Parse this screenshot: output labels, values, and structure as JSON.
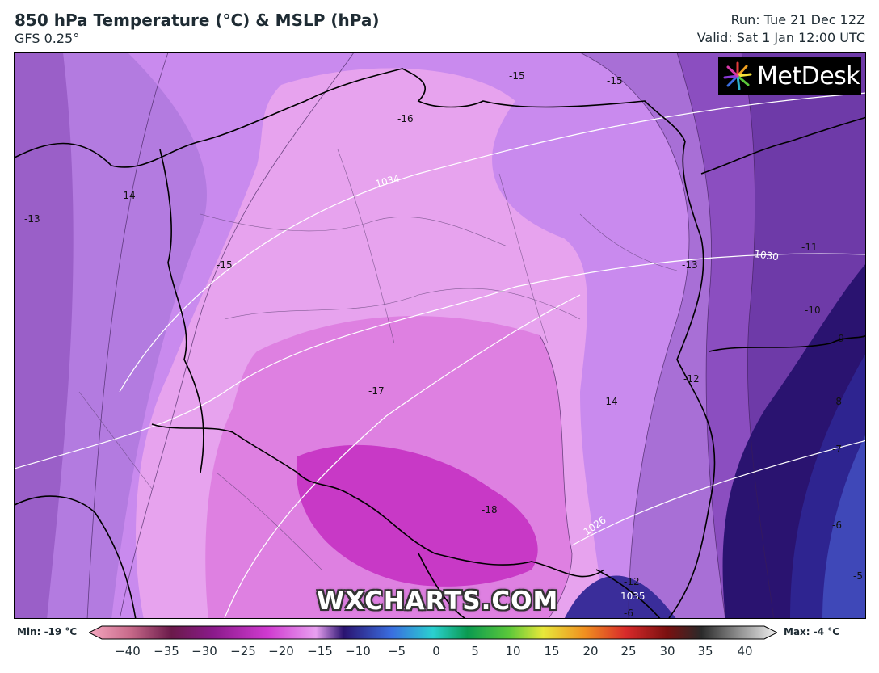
{
  "header": {
    "title": "850 hPa Temperature (°C) & MSLP (hPa)",
    "model": "GFS 0.25°",
    "run": "Run: Tue 21 Dec 12Z",
    "valid": "Valid: Sat 1 Jan 12:00 UTC"
  },
  "logo": {
    "text": "MetDesk",
    "icon": "metdesk-starburst-icon"
  },
  "watermark": "WXCHARTS.COM",
  "colorbar": {
    "min_label": "Min: -19 °C",
    "max_label": "Max: -4 °C",
    "ticks": [
      "−40",
      "−35",
      "−30",
      "−25",
      "−20",
      "−15",
      "−10",
      "−5",
      "0",
      "5",
      "10",
      "15",
      "20",
      "25",
      "30",
      "35",
      "40"
    ]
  },
  "map_labels": {
    "temperature": [
      {
        "text": "-15"
      },
      {
        "text": "-15"
      },
      {
        "text": "-16"
      },
      {
        "text": "-14"
      },
      {
        "text": "-13"
      },
      {
        "text": "-15"
      },
      {
        "text": "-13"
      },
      {
        "text": "-11"
      },
      {
        "text": "-10"
      },
      {
        "text": "-9"
      },
      {
        "text": "-12"
      },
      {
        "text": "-8"
      },
      {
        "text": "-14"
      },
      {
        "text": "-17"
      },
      {
        "text": "-7"
      },
      {
        "text": "-18"
      },
      {
        "text": "-6"
      },
      {
        "text": "-5"
      },
      {
        "text": "-12"
      },
      {
        "text": "-6"
      }
    ],
    "isobars": [
      {
        "text": "1034"
      },
      {
        "text": "1030"
      },
      {
        "text": "1026"
      },
      {
        "text": "1035"
      }
    ]
  },
  "colors": {
    "accent_text": "#1e2b33",
    "coldest_core": "#c839c6",
    "east_warm": "#2a1370"
  }
}
